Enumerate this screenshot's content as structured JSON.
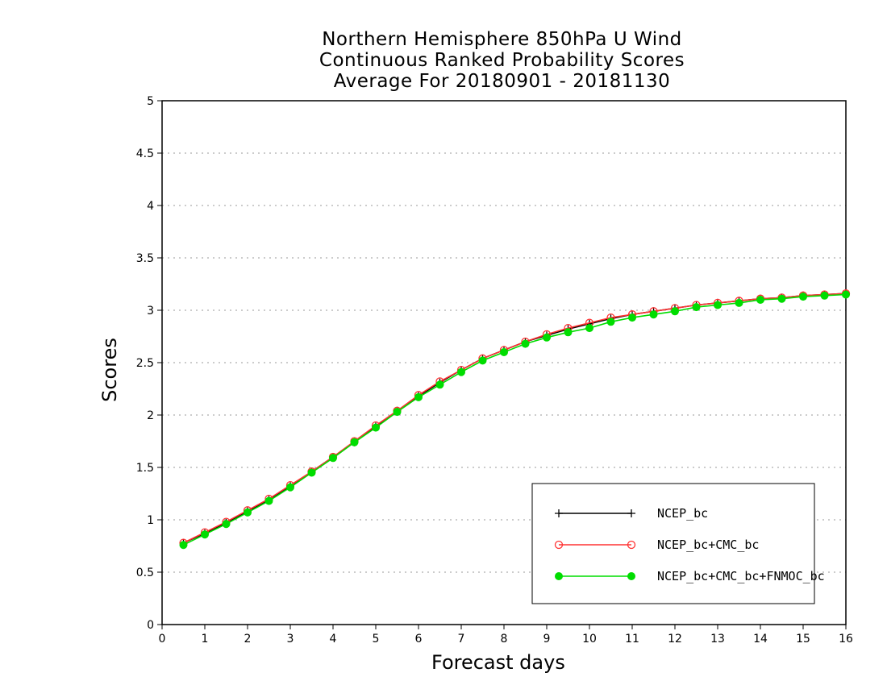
{
  "chart_data": {
    "type": "line",
    "title": [
      "Northern Hemisphere 850hPa U Wind",
      "Continuous Ranked Probability Scores",
      "Average For 20180901 - 20181130"
    ],
    "xlabel": "Forecast days",
    "ylabel": "Scores",
    "xlim": [
      0,
      16
    ],
    "ylim": [
      0,
      5
    ],
    "xticks": [
      "0",
      "1",
      "2",
      "3",
      "4",
      "5",
      "6",
      "7",
      "8",
      "9",
      "10",
      "11",
      "12",
      "13",
      "14",
      "15",
      "16"
    ],
    "yticks": [
      "0",
      "0.5",
      "1",
      "1.5",
      "2",
      "2.5",
      "3",
      "3.5",
      "4",
      "4.5",
      "5"
    ],
    "grid": true,
    "legend_position": "bottom-right",
    "x": [
      0.5,
      1,
      1.5,
      2,
      2.5,
      3,
      3.5,
      4,
      4.5,
      5,
      5.5,
      6,
      6.5,
      7,
      7.5,
      8,
      8.5,
      9,
      9.5,
      10,
      10.5,
      11,
      11.5,
      12,
      12.5,
      13,
      13.5,
      14,
      14.5,
      15,
      15.5,
      16
    ],
    "series": [
      {
        "name": "NCEP_bc",
        "color": "#000000",
        "marker": "plus",
        "values": [
          0.78,
          0.87,
          0.97,
          1.08,
          1.19,
          1.32,
          1.46,
          1.6,
          1.74,
          1.89,
          2.04,
          2.18,
          2.31,
          2.43,
          2.54,
          2.62,
          2.7,
          2.76,
          2.82,
          2.87,
          2.92,
          2.96,
          2.99,
          3.02,
          3.05,
          3.07,
          3.09,
          3.11,
          3.12,
          3.14,
          3.15,
          3.16
        ]
      },
      {
        "name": "NCEP_bc+CMC_bc",
        "color": "#ff3333",
        "marker": "open-circle",
        "values": [
          0.78,
          0.88,
          0.98,
          1.09,
          1.2,
          1.33,
          1.46,
          1.6,
          1.75,
          1.9,
          2.04,
          2.19,
          2.32,
          2.43,
          2.54,
          2.62,
          2.7,
          2.77,
          2.83,
          2.88,
          2.93,
          2.96,
          2.99,
          3.02,
          3.05,
          3.07,
          3.09,
          3.11,
          3.12,
          3.14,
          3.15,
          3.16
        ]
      },
      {
        "name": "NCEP_bc+CMC_bc+FNMOC_bc",
        "color": "#00dd00",
        "marker": "filled-circle",
        "values": [
          0.76,
          0.86,
          0.96,
          1.07,
          1.18,
          1.31,
          1.45,
          1.59,
          1.74,
          1.88,
          2.03,
          2.17,
          2.29,
          2.41,
          2.52,
          2.6,
          2.68,
          2.74,
          2.79,
          2.83,
          2.89,
          2.93,
          2.96,
          2.99,
          3.03,
          3.05,
          3.07,
          3.1,
          3.11,
          3.13,
          3.14,
          3.15
        ]
      }
    ]
  }
}
